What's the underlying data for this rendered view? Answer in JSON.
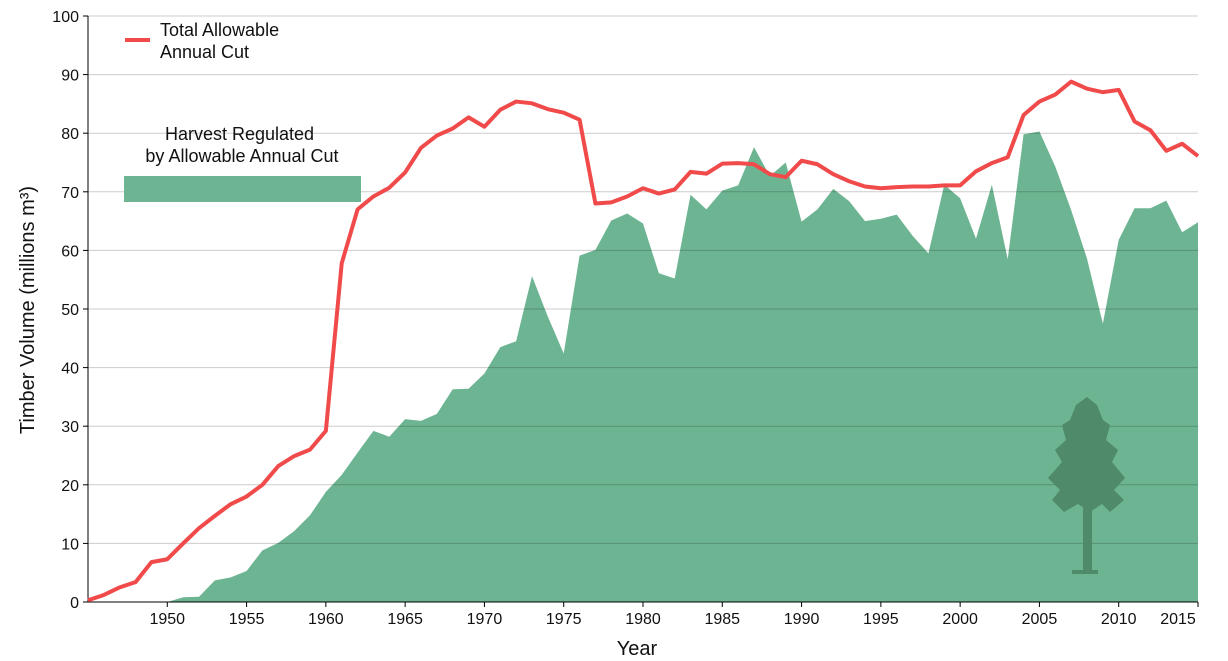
{
  "chart_data": {
    "type": "line",
    "x_label": "Year",
    "y_label": "Timber Volume (millions m³)",
    "x": [
      1945,
      1946,
      1947,
      1948,
      1949,
      1950,
      1951,
      1952,
      1953,
      1954,
      1955,
      1956,
      1957,
      1958,
      1959,
      1960,
      1961,
      1962,
      1963,
      1964,
      1965,
      1966,
      1967,
      1968,
      1969,
      1970,
      1971,
      1972,
      1973,
      1974,
      1975,
      1976,
      1977,
      1978,
      1979,
      1980,
      1981,
      1982,
      1983,
      1984,
      1985,
      1986,
      1987,
      1988,
      1989,
      1990,
      1991,
      1992,
      1993,
      1994,
      1995,
      1996,
      1997,
      1998,
      1999,
      2000,
      2001,
      2002,
      2003,
      2004,
      2005,
      2006,
      2007,
      2008,
      2009,
      2010,
      2011,
      2012,
      2013,
      2014,
      2015
    ],
    "series": [
      {
        "name": "Harvest Regulated by Allowable Annual Cut",
        "type": "area",
        "color": "#6db592",
        "values": [
          0,
          0,
          0,
          0,
          0,
          0,
          0.8,
          0.9,
          3.7,
          4.2,
          5.3,
          8.8,
          10.1,
          12.1,
          14.8,
          18.8,
          21.7,
          25.5,
          29.2,
          28.2,
          31.2,
          30.9,
          32.1,
          36.3,
          36.4,
          39,
          43.5,
          44.5,
          55.6,
          48.7,
          42.4,
          59.1,
          60.1,
          65.1,
          66.3,
          64.6,
          56.1,
          55.2,
          69.5,
          67,
          70.2,
          71.1,
          77.6,
          72.7,
          75,
          64.9,
          67,
          70.5,
          68.4,
          65,
          65.4,
          66.1,
          62.5,
          59.5,
          71.2,
          68.9,
          62,
          71.2,
          58.5,
          79.8,
          80.3,
          74.3,
          66.9,
          58.6,
          47.5,
          61.8,
          67.2,
          67.2,
          68.5,
          63.1,
          64.8
        ]
      },
      {
        "name": "Total Allowable Annual Cut",
        "type": "line",
        "color": "#f04a4a",
        "values": [
          0.3,
          1.2,
          2.5,
          3.4,
          6.8,
          7.3,
          10,
          12.6,
          14.7,
          16.7,
          18,
          20,
          23.2,
          24.9,
          26,
          29.2,
          57.8,
          67,
          69.2,
          70.7,
          73.3,
          77.5,
          79.6,
          80.8,
          82.7,
          81.1,
          84,
          85.4,
          85.1,
          84.1,
          83.5,
          82.3,
          68,
          68.2,
          69.2,
          70.6,
          69.7,
          70.4,
          73.4,
          73.1,
          74.8,
          74.9,
          74.7,
          73,
          72.5,
          75.3,
          74.7,
          73,
          71.8,
          70.9,
          70.6,
          70.8,
          70.9,
          70.9,
          71.1,
          71.1,
          73.5,
          74.9,
          75.9,
          83.1,
          85.4,
          86.6,
          88.8,
          87.6,
          87,
          87.4,
          82,
          80.5,
          77,
          78.2,
          76.1
        ]
      }
    ],
    "xlim": [
      1945,
      2015
    ],
    "xticks": [
      1950,
      1955,
      1960,
      1965,
      1970,
      1975,
      1980,
      1985,
      1990,
      1995,
      2000,
      2005,
      2010,
      2015
    ],
    "ylim": [
      0,
      100
    ],
    "yticks": [
      0,
      10,
      20,
      30,
      40,
      50,
      60,
      70,
      80,
      90,
      100
    ],
    "grid": true
  }
}
